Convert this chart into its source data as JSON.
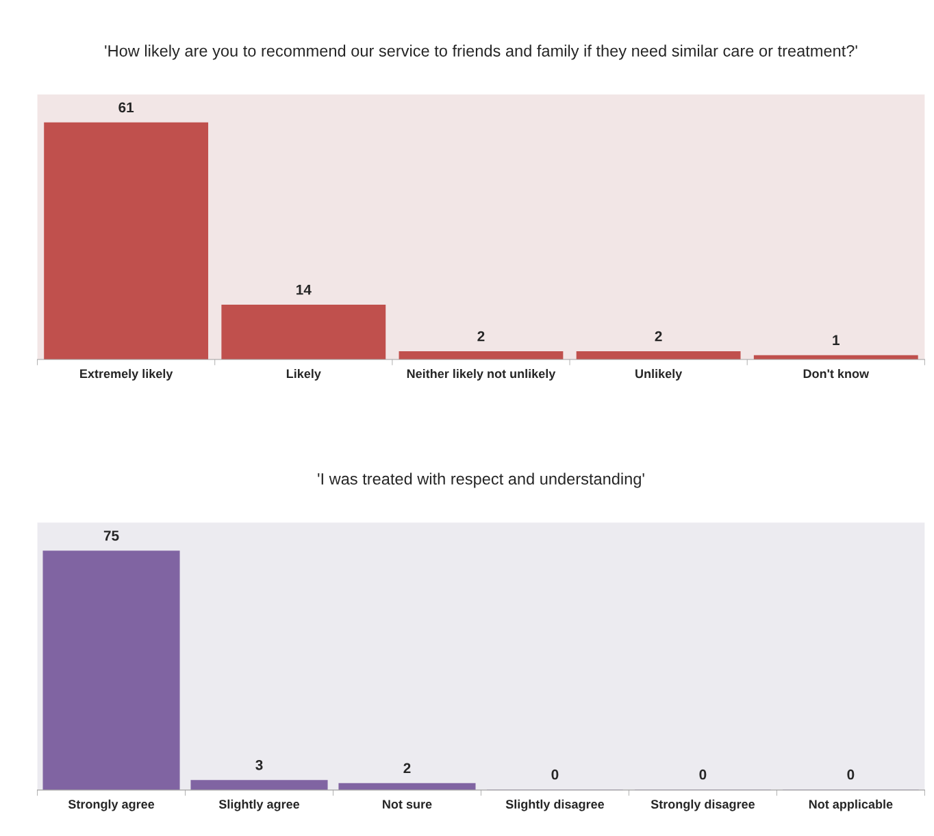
{
  "chart_data": [
    {
      "type": "bar",
      "title": "'How likely are you to recommend our service to friends and family if they need similar care or treatment?'",
      "categories": [
        "Extremely likely",
        "Likely",
        "Neither likely not unlikely",
        "Unlikely",
        "Don't know"
      ],
      "values": [
        61,
        14,
        2,
        2,
        1
      ],
      "color": "#c0504d",
      "data_labels": true,
      "grid": false,
      "legend": false
    },
    {
      "type": "bar",
      "title": "'I was treated with respect and understanding'",
      "categories": [
        "Strongly agree",
        "Slightly agree",
        "Not sure",
        "Slightly disagree",
        "Strongly disagree",
        "Not applicable"
      ],
      "values": [
        75,
        3,
        2,
        0,
        0,
        0
      ],
      "color": "#8064a2",
      "data_labels": true,
      "grid": false,
      "legend": false
    }
  ]
}
